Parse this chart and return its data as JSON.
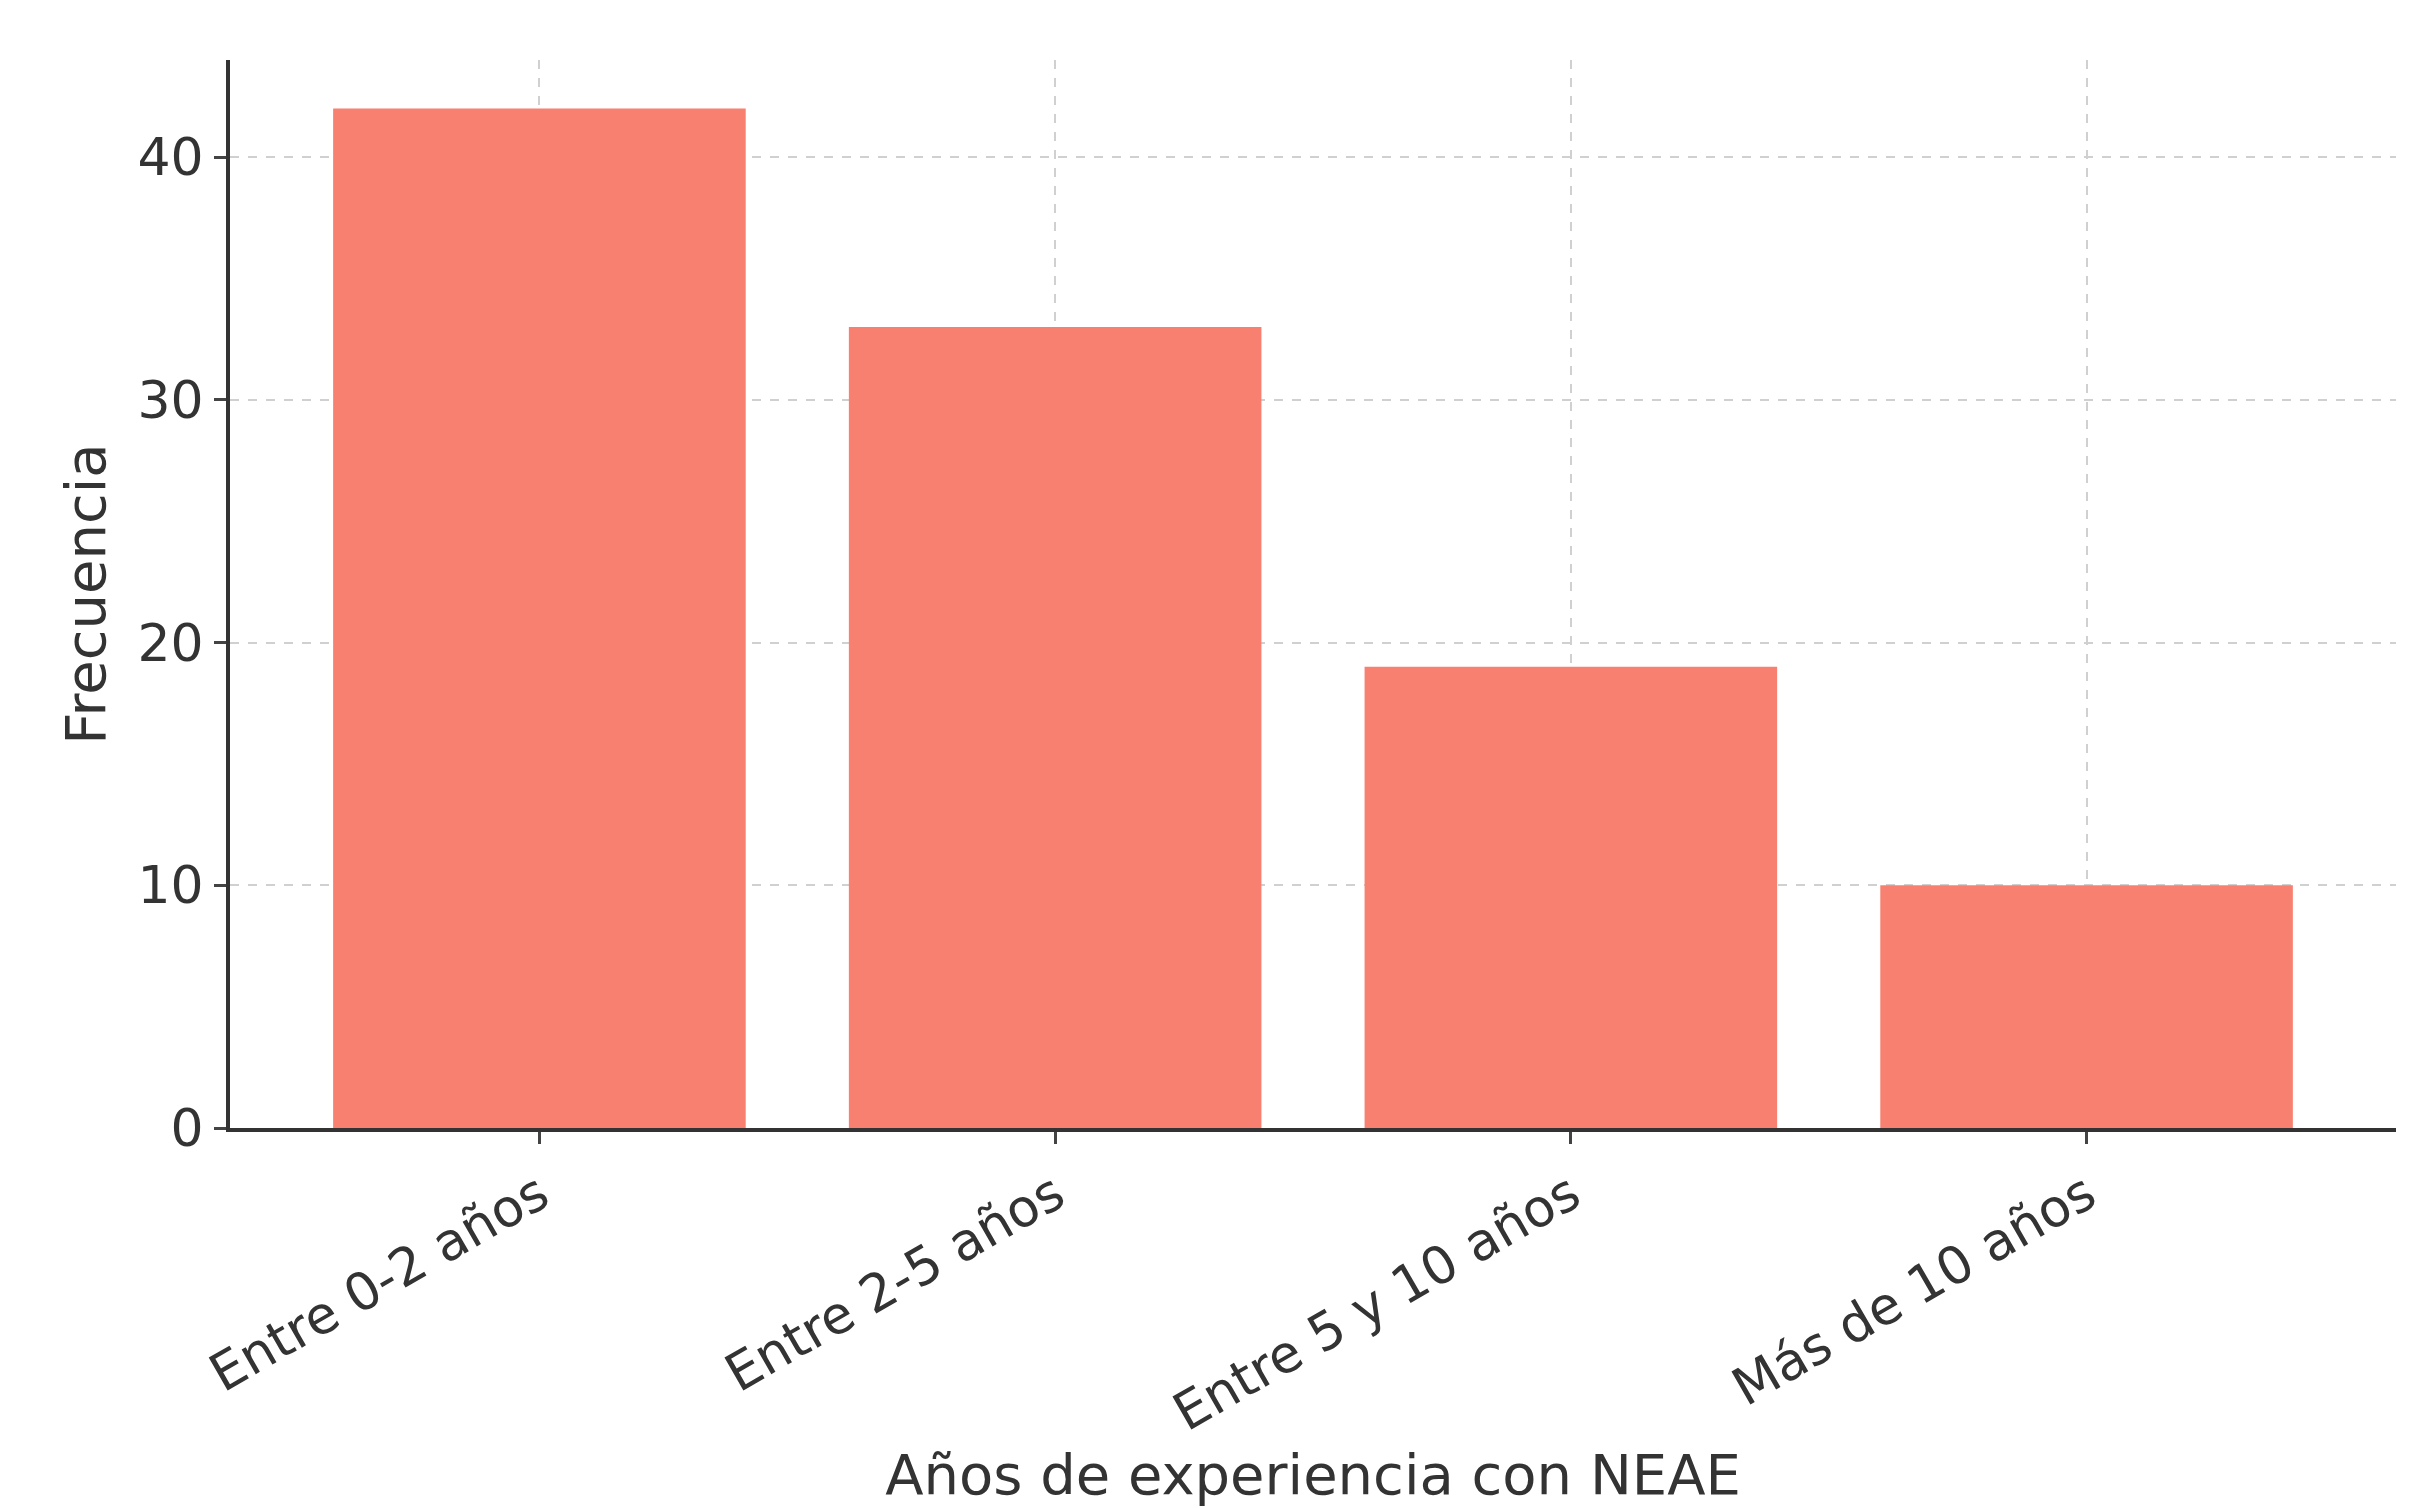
{
  "chart_data": {
    "type": "bar",
    "xlabel": "Años de experiencia con NEAE",
    "ylabel": "Frecuencia",
    "categories": [
      "Entre 0-2 años",
      "Entre 2-5 años",
      "Entre 5 y 10 años",
      "Más de 10 años"
    ],
    "values": [
      42,
      33,
      19,
      10
    ],
    "color": "#f88070",
    "ylim": [
      0,
      44
    ],
    "yticks": [
      0,
      10,
      20,
      30,
      40
    ],
    "grid": true
  }
}
